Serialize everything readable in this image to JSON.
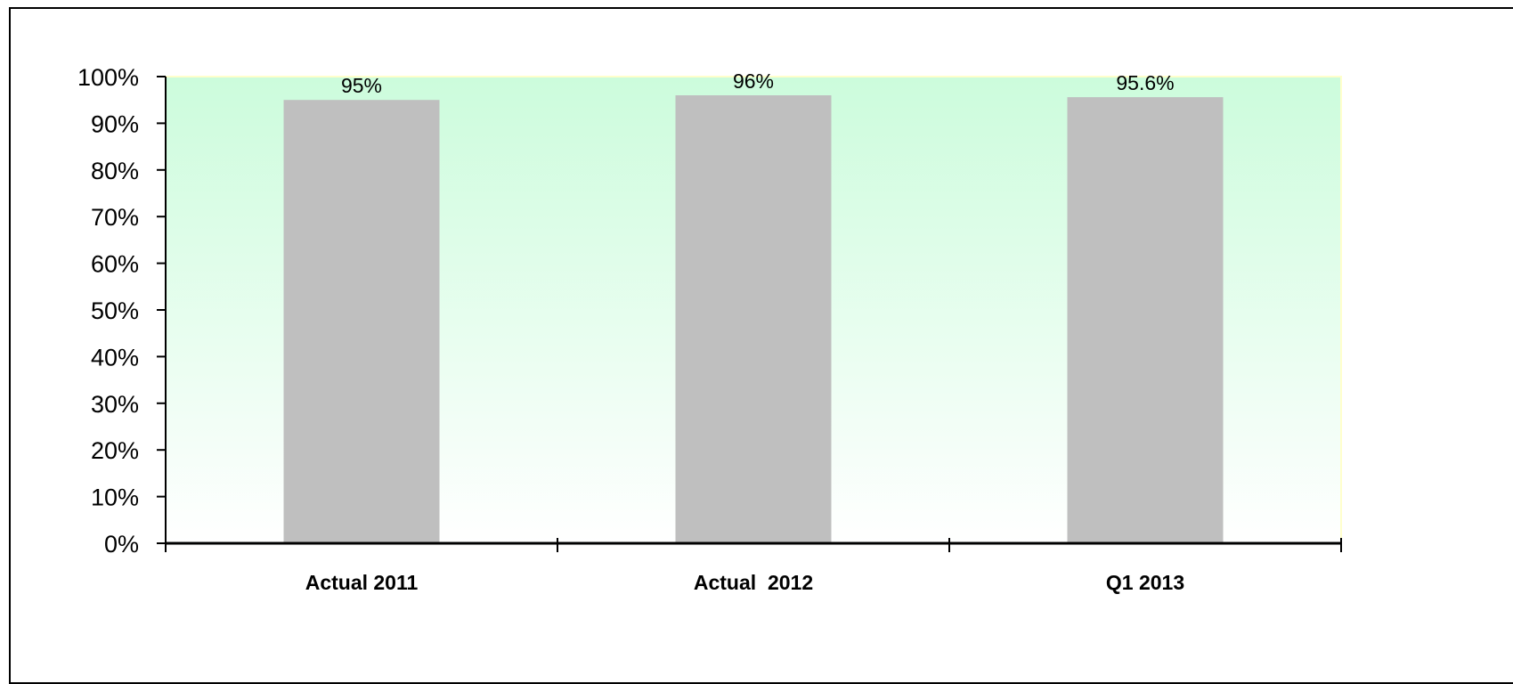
{
  "chart_data": {
    "type": "bar",
    "categories": [
      "Actual 2011",
      "Actual  2012",
      "Q1 2013"
    ],
    "values": [
      95,
      96,
      95.6
    ],
    "data_labels": [
      "95%",
      "96%",
      "95.6%"
    ],
    "ylim": [
      0,
      100
    ],
    "yticks": [
      0,
      10,
      20,
      30,
      40,
      50,
      60,
      70,
      80,
      90,
      100
    ],
    "ytick_labels": [
      "0%",
      "10%",
      "20%",
      "30%",
      "40%",
      "50%",
      "60%",
      "70%",
      "80%",
      "90%",
      "100%"
    ],
    "grid": false,
    "legend": "none",
    "colors": {
      "bar": "#bfbfbf",
      "plot_bg_top": "#ccfcdc",
      "plot_bg_bottom": "#ffffff",
      "plot_border": "#ffffcc",
      "axis": "#000000"
    }
  }
}
